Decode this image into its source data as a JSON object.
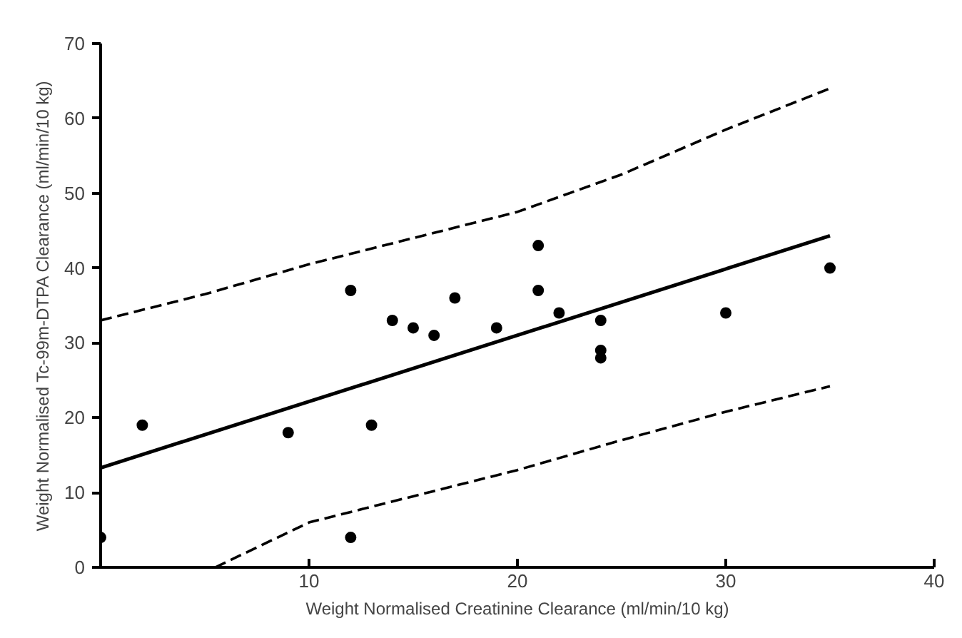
{
  "chart_data": {
    "type": "scatter",
    "xlabel": "Weight Normalised Creatinine Clearance (ml/min/10 kg)",
    "ylabel": "Weight Normalised Tc-99m-DTPA Clearance (ml/min/10 kg)",
    "xlim": [
      0,
      40
    ],
    "ylim": [
      0,
      70
    ],
    "xticks": [
      {
        "value": 0,
        "label": null
      },
      10,
      20,
      30,
      40
    ],
    "yticks": [
      0,
      10,
      20,
      30,
      40,
      50,
      60,
      70
    ],
    "grid": false,
    "marker": "circle",
    "series": [
      {
        "color": "#000000",
        "x": [
          0,
          2,
          9,
          12,
          12,
          13,
          14,
          15,
          16,
          17,
          19,
          21,
          21,
          22,
          24,
          24,
          24,
          30,
          35
        ],
        "values": [
          4,
          19,
          18,
          37,
          4,
          19,
          33,
          32,
          31,
          36,
          32,
          43,
          37,
          34,
          33,
          29,
          28,
          34,
          40
        ]
      },
      {
        "type": "line",
        "marker": "none",
        "color": "#000000",
        "line_style": "solid",
        "x": [
          0,
          35
        ],
        "values": [
          13.3,
          44.3
        ]
      },
      {
        "type": "line",
        "marker": "none",
        "color": "#000000",
        "line_style": "dashed",
        "x": [
          0,
          5,
          10,
          15,
          20,
          25,
          30,
          35
        ],
        "values": [
          33,
          36.5,
          40.5,
          44,
          47.5,
          52.5,
          58.5,
          64
        ]
      },
      {
        "type": "line",
        "marker": "none",
        "color": "#000000",
        "line_style": "dashed",
        "x": [
          5.5,
          10,
          15,
          20,
          25,
          30,
          35
        ],
        "values": [
          0,
          6,
          9.5,
          13,
          17,
          20.8,
          24.2
        ]
      }
    ]
  }
}
